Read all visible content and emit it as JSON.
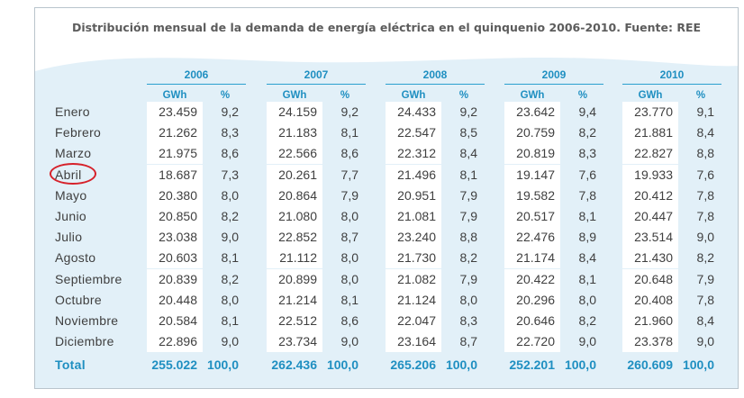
{
  "title": "Distribución mensual de la demanda de energía eléctrica en el quinquenio 2006-2010. Fuente: REE",
  "colors": {
    "accent": "#1f8fc1",
    "wave": "#e2f0f8",
    "highlight_circle": "#d6212a",
    "text": "#3f3f3f"
  },
  "table": {
    "years": [
      "2006",
      "2007",
      "2008",
      "2009",
      "2010"
    ],
    "subheaders": {
      "value": "GWh",
      "percent": "%"
    },
    "rows": [
      {
        "month": "Enero",
        "cells": [
          [
            "23.459",
            "9,2"
          ],
          [
            "24.159",
            "9,2"
          ],
          [
            "24.433",
            "9,2"
          ],
          [
            "23.642",
            "9,4"
          ],
          [
            "23.770",
            "9,1"
          ]
        ]
      },
      {
        "month": "Febrero",
        "cells": [
          [
            "21.262",
            "8,3"
          ],
          [
            "21.183",
            "8,1"
          ],
          [
            "22.547",
            "8,5"
          ],
          [
            "20.759",
            "8,2"
          ],
          [
            "21.881",
            "8,4"
          ]
        ]
      },
      {
        "month": "Marzo",
        "cells": [
          [
            "21.975",
            "8,6"
          ],
          [
            "22.566",
            "8,6"
          ],
          [
            "22.312",
            "8,4"
          ],
          [
            "20.819",
            "8,3"
          ],
          [
            "22.827",
            "8,8"
          ]
        ]
      },
      {
        "month": "Abril",
        "cells": [
          [
            "18.687",
            "7,3"
          ],
          [
            "20.261",
            "7,7"
          ],
          [
            "21.496",
            "8,1"
          ],
          [
            "19.147",
            "7,6"
          ],
          [
            "19.933",
            "7,6"
          ]
        ]
      },
      {
        "month": "Mayo",
        "cells": [
          [
            "20.380",
            "8,0"
          ],
          [
            "20.864",
            "7,9"
          ],
          [
            "20.951",
            "7,9"
          ],
          [
            "19.582",
            "7,8"
          ],
          [
            "20.412",
            "7,8"
          ]
        ]
      },
      {
        "month": "Junio",
        "cells": [
          [
            "20.850",
            "8,2"
          ],
          [
            "21.080",
            "8,0"
          ],
          [
            "21.081",
            "7,9"
          ],
          [
            "20.517",
            "8,1"
          ],
          [
            "20.447",
            "7,8"
          ]
        ]
      },
      {
        "month": "Julio",
        "cells": [
          [
            "23.038",
            "9,0"
          ],
          [
            "22.852",
            "8,7"
          ],
          [
            "23.240",
            "8,8"
          ],
          [
            "22.476",
            "8,9"
          ],
          [
            "23.514",
            "9,0"
          ]
        ]
      },
      {
        "month": "Agosto",
        "cells": [
          [
            "20.603",
            "8,1"
          ],
          [
            "21.112",
            "8,0"
          ],
          [
            "21.730",
            "8,2"
          ],
          [
            "21.174",
            "8,4"
          ],
          [
            "21.430",
            "8,2"
          ]
        ]
      },
      {
        "month": "Septiembre",
        "cells": [
          [
            "20.839",
            "8,2"
          ],
          [
            "20.899",
            "8,0"
          ],
          [
            "21.082",
            "7,9"
          ],
          [
            "20.422",
            "8,1"
          ],
          [
            "20.648",
            "7,9"
          ]
        ]
      },
      {
        "month": "Octubre",
        "cells": [
          [
            "20.448",
            "8,0"
          ],
          [
            "21.214",
            "8,1"
          ],
          [
            "21.124",
            "8,0"
          ],
          [
            "20.296",
            "8,0"
          ],
          [
            "20.408",
            "7,8"
          ]
        ]
      },
      {
        "month": "Noviembre",
        "cells": [
          [
            "20.584",
            "8,1"
          ],
          [
            "22.512",
            "8,6"
          ],
          [
            "22.047",
            "8,3"
          ],
          [
            "20.646",
            "8,2"
          ],
          [
            "21.960",
            "8,4"
          ]
        ]
      },
      {
        "month": "Diciembre",
        "cells": [
          [
            "22.896",
            "9,0"
          ],
          [
            "23.734",
            "9,0"
          ],
          [
            "23.164",
            "8,7"
          ],
          [
            "22.720",
            "9,0"
          ],
          [
            "23.378",
            "9,0"
          ]
        ]
      }
    ],
    "total": {
      "label": "Total",
      "cells": [
        [
          "255.022",
          "100,0"
        ],
        [
          "262.436",
          "100,0"
        ],
        [
          "265.206",
          "100,0"
        ],
        [
          "252.201",
          "100,0"
        ],
        [
          "260.609",
          "100,0"
        ]
      ]
    },
    "highlighted_month": "Abril"
  }
}
